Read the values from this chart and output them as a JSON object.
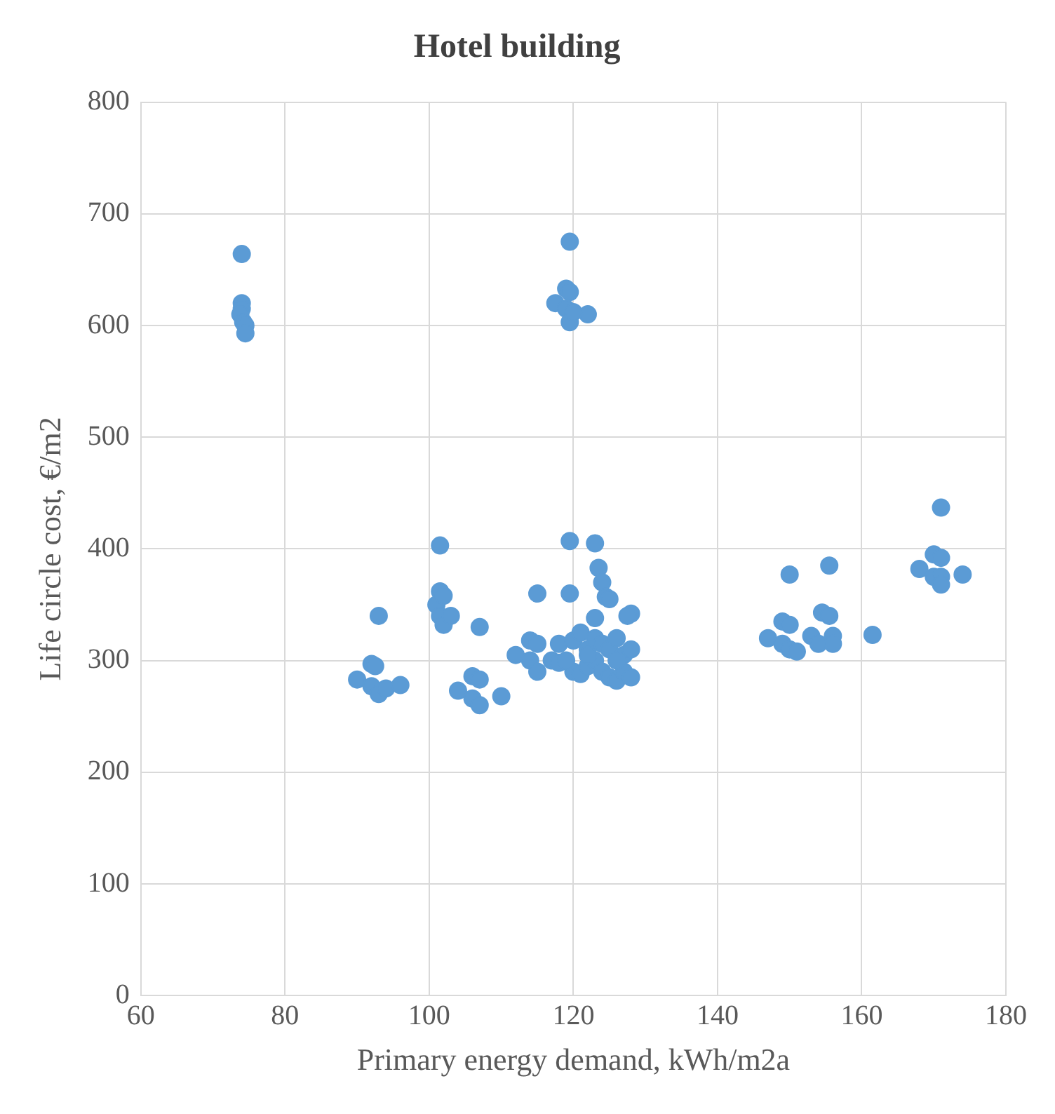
{
  "chart_data": {
    "type": "scatter",
    "title": "Hotel building",
    "xlabel": "Primary energy demand, kWh/m2a",
    "ylabel": "Life circle cost, €/m2",
    "xlim": [
      60,
      180
    ],
    "xticks": [
      60,
      80,
      100,
      120,
      140,
      160,
      180
    ],
    "ylim": [
      0,
      800
    ],
    "yticks": [
      0,
      100,
      200,
      300,
      400,
      500,
      600,
      700,
      800
    ],
    "grid": true,
    "legend": false,
    "marker": "circle",
    "series": [
      {
        "color": "#5b9bd5",
        "x": [
          74,
          74,
          74,
          73.8,
          74.2,
          74.5,
          74.5,
          119.5,
          119,
          119.5,
          117.5,
          119,
          122,
          119.5,
          120,
          90,
          92,
          92.5,
          93,
          92,
          93,
          94,
          96,
          101,
          101.5,
          101.5,
          102,
          101.5,
          102,
          103,
          104,
          106,
          106,
          107,
          107,
          107,
          110,
          112,
          114,
          114,
          115,
          115,
          115,
          117,
          118,
          118,
          119.5,
          119.5,
          123,
          123.5,
          124,
          124.5,
          125,
          123,
          128,
          127.5,
          120,
          121,
          122,
          123,
          124,
          125,
          126,
          127,
          128,
          120,
          121,
          122,
          123,
          124,
          125,
          126,
          127,
          128,
          119,
          122,
          126,
          147,
          149,
          150,
          150,
          149,
          150,
          151,
          153,
          154,
          154.5,
          155.5,
          155.5,
          156,
          156,
          161.5,
          168,
          170,
          171,
          170,
          171,
          171,
          171,
          174
        ],
        "values": [
          664,
          620,
          615,
          610,
          603,
          600,
          593,
          675,
          633,
          630,
          620,
          615,
          610,
          603,
          612,
          283,
          297,
          295,
          340,
          277,
          270,
          275,
          278,
          350,
          403,
          362,
          358,
          340,
          332,
          340,
          273,
          286,
          266,
          330,
          260,
          283,
          268,
          305,
          300,
          318,
          360,
          290,
          315,
          300,
          298,
          315,
          407,
          360,
          405,
          383,
          370,
          357,
          355,
          338,
          342,
          340,
          318,
          325,
          310,
          320,
          315,
          310,
          320,
          305,
          310,
          290,
          288,
          295,
          300,
          290,
          285,
          282,
          290,
          285,
          300,
          305,
          300,
          320,
          335,
          332,
          377,
          315,
          310,
          308,
          322,
          315,
          343,
          340,
          385,
          322,
          315,
          323,
          382,
          395,
          437,
          375,
          392,
          375,
          368,
          377
        ]
      }
    ]
  }
}
